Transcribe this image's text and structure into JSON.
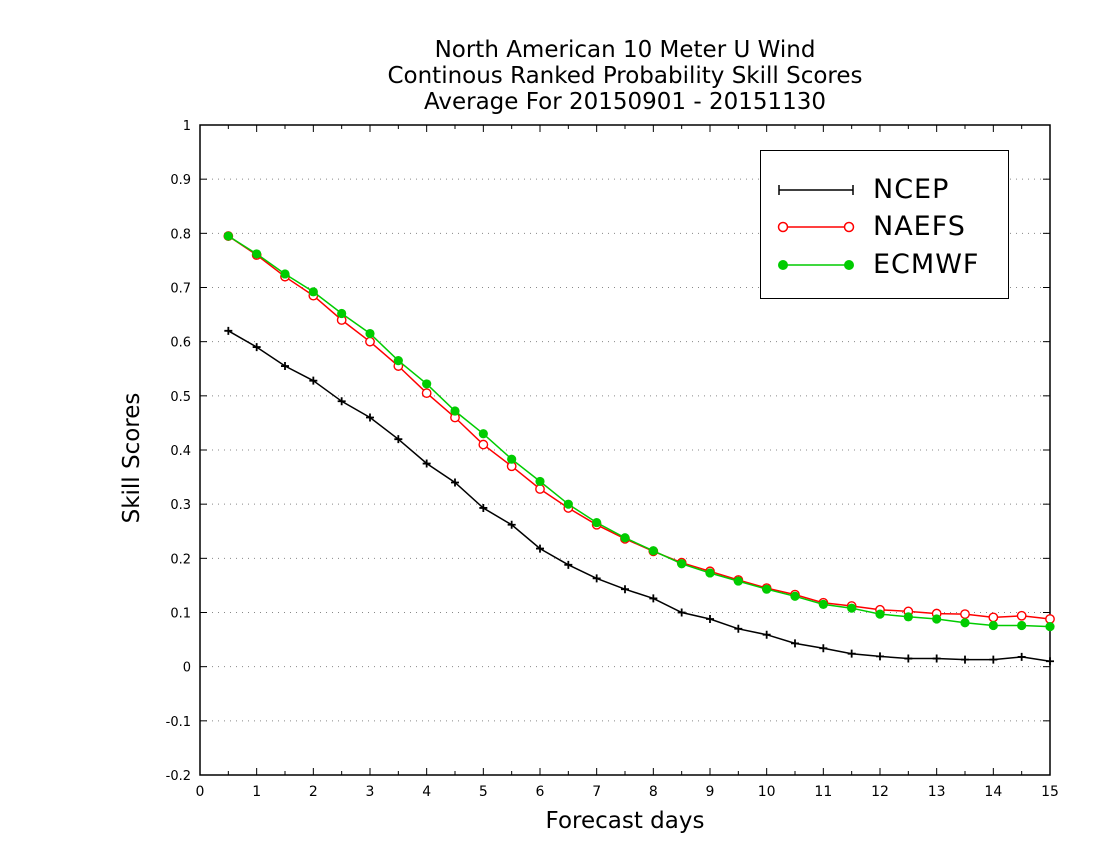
{
  "title": {
    "line1": "North American 10 Meter U Wind",
    "line2": "Continous Ranked Probability Skill Scores",
    "line3": "Average For 20150901 - 20151130"
  },
  "chart_data": {
    "type": "line",
    "xlabel": "Forecast days",
    "ylabel": "Skill Scores",
    "xlim": [
      0,
      15
    ],
    "ylim": [
      -0.2,
      1
    ],
    "xticks": [
      0,
      1,
      2,
      3,
      4,
      5,
      6,
      7,
      8,
      9,
      10,
      11,
      12,
      13,
      14,
      15
    ],
    "yticks": [
      -0.2,
      -0.1,
      0,
      0.1,
      0.2,
      0.3,
      0.4,
      0.5,
      0.6,
      0.7,
      0.8,
      0.9,
      1
    ],
    "ytick_labels": [
      "-0.2",
      "-0.1",
      "0",
      "0.1",
      "0.2",
      "0.3",
      "0.4",
      "0.5",
      "0.6",
      "0.7",
      "0.8",
      "0.9",
      "1"
    ],
    "grid": "horizontal dotted",
    "legend_position": "top-right",
    "x": [
      0.5,
      1,
      1.5,
      2,
      2.5,
      3,
      3.5,
      4,
      4.5,
      5,
      5.5,
      6,
      6.5,
      7,
      7.5,
      8,
      8.5,
      9,
      9.5,
      10,
      10.5,
      11,
      11.5,
      12,
      12.5,
      13,
      13.5,
      14,
      14.5,
      15
    ],
    "series": [
      {
        "name": "NCEP",
        "color": "#000000",
        "marker": "plus",
        "values": [
          0.62,
          0.59,
          0.555,
          0.528,
          0.49,
          0.46,
          0.42,
          0.375,
          0.34,
          0.293,
          0.262,
          0.218,
          0.188,
          0.163,
          0.143,
          0.126,
          0.1,
          0.088,
          0.07,
          0.059,
          0.043,
          0.034,
          0.024,
          0.019,
          0.015,
          0.015,
          0.013,
          0.013,
          0.018,
          0.01
        ]
      },
      {
        "name": "NAEFS",
        "color": "#ff0000",
        "marker": "open-circle",
        "values": [
          0.795,
          0.76,
          0.72,
          0.685,
          0.64,
          0.6,
          0.555,
          0.505,
          0.46,
          0.41,
          0.37,
          0.328,
          0.293,
          0.262,
          0.236,
          0.213,
          0.192,
          0.176,
          0.16,
          0.145,
          0.133,
          0.118,
          0.112,
          0.105,
          0.102,
          0.098,
          0.097,
          0.091,
          0.094,
          0.088
        ]
      },
      {
        "name": "ECMWF",
        "color": "#00cc00",
        "marker": "filled-circle",
        "values": [
          0.795,
          0.762,
          0.725,
          0.692,
          0.652,
          0.615,
          0.565,
          0.522,
          0.472,
          0.43,
          0.383,
          0.342,
          0.3,
          0.266,
          0.238,
          0.214,
          0.19,
          0.173,
          0.158,
          0.143,
          0.13,
          0.115,
          0.108,
          0.097,
          0.092,
          0.088,
          0.081,
          0.076,
          0.076,
          0.074
        ]
      }
    ]
  }
}
